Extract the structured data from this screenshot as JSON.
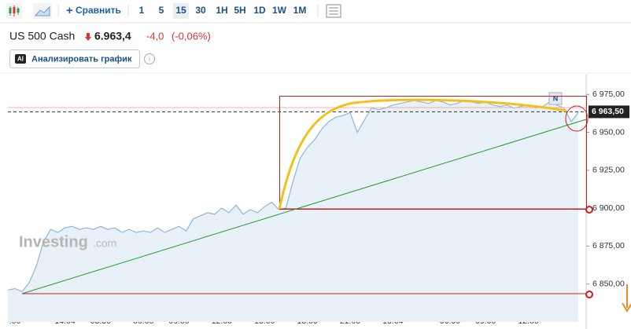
{
  "toolbar": {
    "compare": "Сравнить",
    "ranges": [
      "1",
      "5",
      "15",
      "30",
      "1H",
      "5H",
      "1D",
      "1W",
      "1M"
    ],
    "active_index": 2
  },
  "header": {
    "title": "US 500 Cash",
    "price": "6.963,4",
    "change": "-4,0",
    "change_pct": "(-0,06%)"
  },
  "analyze_button": {
    "badge": "AI",
    "label": "Анализировать график"
  },
  "chart_data": {
    "type": "line",
    "watermark": "Investing",
    "watermark_suffix": ".com",
    "marker": "N",
    "categories": [
      null,
      ":00",
      null,
      null,
      null,
      null,
      null,
      null,
      "14.04",
      null,
      null,
      null,
      null,
      "03:30",
      null,
      null,
      null,
      null,
      null,
      "06:00",
      null,
      null,
      null,
      null,
      "09:00",
      null,
      null,
      null,
      null,
      null,
      "12:00",
      null,
      null,
      null,
      null,
      null,
      "15:00",
      null,
      null,
      null,
      null,
      null,
      "18:00",
      null,
      null,
      null,
      null,
      null,
      "21:00",
      null,
      null,
      null,
      null,
      null,
      "15.04",
      null,
      null,
      null,
      null,
      null,
      null,
      null,
      "06:00",
      null,
      null,
      null,
      null,
      "09:00",
      null,
      null,
      null,
      null,
      null,
      "12:00",
      null,
      null,
      null,
      null,
      null,
      null,
      null
    ],
    "series": [
      {
        "name": "US 500 Cash",
        "color": "#8db6da",
        "values": [
          6846,
          6847,
          6845,
          6851,
          6862,
          6878,
          6886,
          6884,
          6887,
          6888,
          6886,
          6887,
          6886,
          6888,
          6886,
          6887,
          6884,
          6886,
          6884,
          6885,
          6884,
          6887,
          6884,
          6886,
          6888,
          6885,
          6893,
          6895,
          6897,
          6896,
          6900,
          6897,
          6902,
          6896,
          6899,
          6897,
          6901,
          6904,
          6899,
          6900,
          6918,
          6933,
          6940,
          6945,
          6952,
          6957,
          6960,
          6961,
          6963,
          6950,
          6958,
          6966,
          6965,
          6966,
          6968,
          6969,
          6970,
          6971,
          6970,
          6969,
          6971,
          6970,
          6968,
          6969,
          6971,
          6970,
          6969,
          6970,
          6968,
          6967,
          6968,
          6966,
          6967,
          6968,
          6966,
          6967,
          6970,
          6968,
          6966,
          6957,
          6963
        ]
      }
    ],
    "ylim": [
      6825,
      6987
    ],
    "yticks": [
      {
        "value": 6850,
        "label": "6 850,00"
      },
      {
        "value": 6875,
        "label": "6 875,00"
      },
      {
        "value": 6900,
        "label": "6 900,00"
      },
      {
        "value": 6925,
        "label": "6 925,00"
      },
      {
        "value": 6950,
        "label": "6 950,00"
      },
      {
        "value": 6975,
        "label": "6 975,00"
      }
    ],
    "last_price": {
      "value": 6963.5,
      "label": "6 963,50"
    }
  }
}
